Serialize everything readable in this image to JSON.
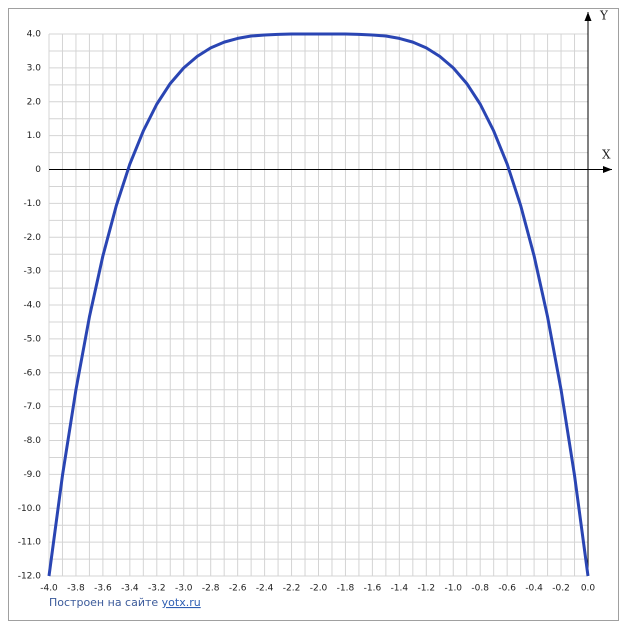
{
  "chart_data": {
    "type": "line",
    "x_axis_label": "X",
    "y_axis_label": "Y",
    "footer": "Построен на сайте",
    "footer_link": "yotx.ru",
    "color": "#2a45b3",
    "x": [
      -4,
      -3.9,
      -3.8,
      -3.7,
      -3.6,
      -3.5,
      -3.4,
      -3.3,
      -3.2,
      -3.1,
      -3,
      -2.9,
      -2.8,
      -2.7,
      -2.6,
      -2.5,
      -2.4,
      -2.3,
      -2.2,
      -2.1,
      -2,
      -1.9,
      -1.8,
      -1.7,
      -1.6,
      -1.5,
      -1.4,
      -1.3,
      -1.2,
      -1.1,
      -1,
      -0.9,
      -0.8,
      -0.7,
      -0.6,
      -0.5,
      -0.4,
      -0.3,
      -0.2,
      -0.1,
      0
    ],
    "values": [
      -12,
      -9.03,
      -6.5,
      -4.35,
      -2.55,
      -1.06,
      0.16,
      1.14,
      1.93,
      2.54,
      3,
      3.34,
      3.59,
      3.76,
      3.87,
      3.94,
      3.97,
      3.99,
      4,
      4,
      4,
      4,
      4,
      3.99,
      3.97,
      3.94,
      3.87,
      3.76,
      3.59,
      3.34,
      3,
      2.54,
      1.93,
      1.14,
      0.16,
      -1.06,
      -2.55,
      -4.35,
      -6.5,
      -9.03,
      -12
    ],
    "xlim": [
      -4,
      0
    ],
    "ylim": [
      -12,
      4
    ],
    "xticks": [
      {
        "value": -4,
        "label": "-4.0"
      },
      {
        "value": -3.8,
        "label": "-3.8"
      },
      {
        "value": -3.6,
        "label": "-3.6"
      },
      {
        "value": -3.4,
        "label": "-3.4"
      },
      {
        "value": -3.2,
        "label": "-3.2"
      },
      {
        "value": -3,
        "label": "-3.0"
      },
      {
        "value": -2.8,
        "label": "-2.8"
      },
      {
        "value": -2.6,
        "label": "-2.6"
      },
      {
        "value": -2.4,
        "label": "-2.4"
      },
      {
        "value": -2.2,
        "label": "-2.2"
      },
      {
        "value": -2,
        "label": "-2.0"
      },
      {
        "value": -1.8,
        "label": "-1.8"
      },
      {
        "value": -1.6,
        "label": "-1.6"
      },
      {
        "value": -1.4,
        "label": "-1.4"
      },
      {
        "value": -1.2,
        "label": "-1.2"
      },
      {
        "value": -1,
        "label": "-1.0"
      },
      {
        "value": -0.8,
        "label": "-0.8"
      },
      {
        "value": -0.6,
        "label": "-0.6"
      },
      {
        "value": -0.4,
        "label": "-0.4"
      },
      {
        "value": -0.2,
        "label": "-0.2"
      },
      {
        "value": 0,
        "label": "0.0"
      }
    ],
    "yticks": [
      {
        "value": 4,
        "label": "4.0"
      },
      {
        "value": 3,
        "label": "3.0"
      },
      {
        "value": 2,
        "label": "2.0"
      },
      {
        "value": 1,
        "label": "1.0"
      },
      0,
      {
        "value": -1,
        "label": "-1.0"
      },
      {
        "value": -2,
        "label": "-2.0"
      },
      {
        "value": -3,
        "label": "-3.0"
      },
      {
        "value": -4,
        "label": "-4.0"
      },
      {
        "value": -5,
        "label": "-5.0"
      },
      {
        "value": -6,
        "label": "-6.0"
      },
      {
        "value": -7,
        "label": "-7.0"
      },
      {
        "value": -8,
        "label": "-8.0"
      },
      {
        "value": -9,
        "label": "-9.0"
      },
      {
        "value": -10,
        "label": "-10.0"
      },
      {
        "value": -11,
        "label": "-11.0"
      },
      {
        "value": -12,
        "label": "-12.0"
      }
    ],
    "minor_xticks": [
      -3.9,
      -3.7,
      -3.5,
      -3.3,
      -3.1,
      -2.9,
      -2.7,
      -2.5,
      -2.3,
      -2.1,
      -1.9,
      -1.7,
      -1.5,
      -1.3,
      -1.1,
      -0.9,
      -0.7,
      -0.5,
      -0.3,
      -0.1
    ],
    "minor_yticks": [
      3.5,
      2.5,
      1.5,
      0.5,
      -0.5,
      -1.5,
      -2.5,
      -3.5,
      -4.5,
      -5.5,
      -6.5,
      -7.5,
      -8.5,
      -9.5,
      -10.5,
      -11.5
    ],
    "grid": true
  }
}
